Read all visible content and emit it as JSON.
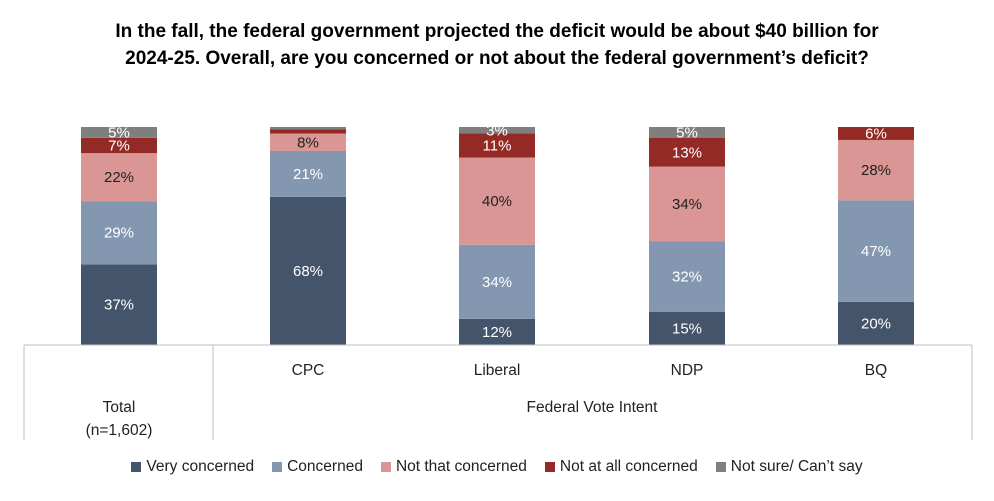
{
  "chart_data": {
    "type": "bar",
    "stacked": true,
    "title": "In the fall, the federal government projected the deficit would be about $40 billion for 2024-25. Overall, are you concerned or not about the federal government’s deficit?",
    "categories": [
      "Total (n=1,602)",
      "CPC",
      "Liberal",
      "NDP",
      "BQ"
    ],
    "category_labels": {
      "total_line1": "Total",
      "total_line2": "(n=1,602)",
      "CPC": "CPC",
      "Liberal": "Liberal",
      "NDP": "NDP",
      "BQ": "BQ"
    },
    "group_label": "Federal Vote Intent",
    "ylim": [
      0,
      100
    ],
    "grid": false,
    "legend_position": "bottom",
    "series": [
      {
        "name": "Very concerned",
        "color": "#44546A",
        "label_color": "#ffffff",
        "values": [
          37,
          68,
          12,
          15,
          20
        ],
        "labels": [
          "37%",
          "68%",
          "12%",
          "15%",
          "20%"
        ]
      },
      {
        "name": "Concerned",
        "color": "#8497B0",
        "label_color": "#ffffff",
        "values": [
          29,
          21,
          34,
          32,
          47
        ],
        "labels": [
          "29%",
          "21%",
          "34%",
          "32%",
          "47%"
        ]
      },
      {
        "name": "Not that concerned",
        "color": "#DA9694",
        "label_color": "#222222",
        "values": [
          22,
          8,
          40,
          34,
          28
        ],
        "labels": [
          "22%",
          "8%",
          "40%",
          "34%",
          "28%"
        ]
      },
      {
        "name": "Not at all concerned",
        "color": "#942A25",
        "label_color": "#ffffff",
        "values": [
          7,
          2,
          11,
          13,
          6
        ],
        "labels": [
          "7%",
          "",
          "11%",
          "13%",
          "6%"
        ]
      },
      {
        "name": "Not sure/ Can’t say",
        "color": "#7F7F7F",
        "label_color": "#ffffff",
        "values": [
          5,
          1,
          3,
          5,
          0
        ],
        "labels": [
          "5%",
          "",
          "3%",
          "5%",
          ""
        ]
      }
    ]
  }
}
